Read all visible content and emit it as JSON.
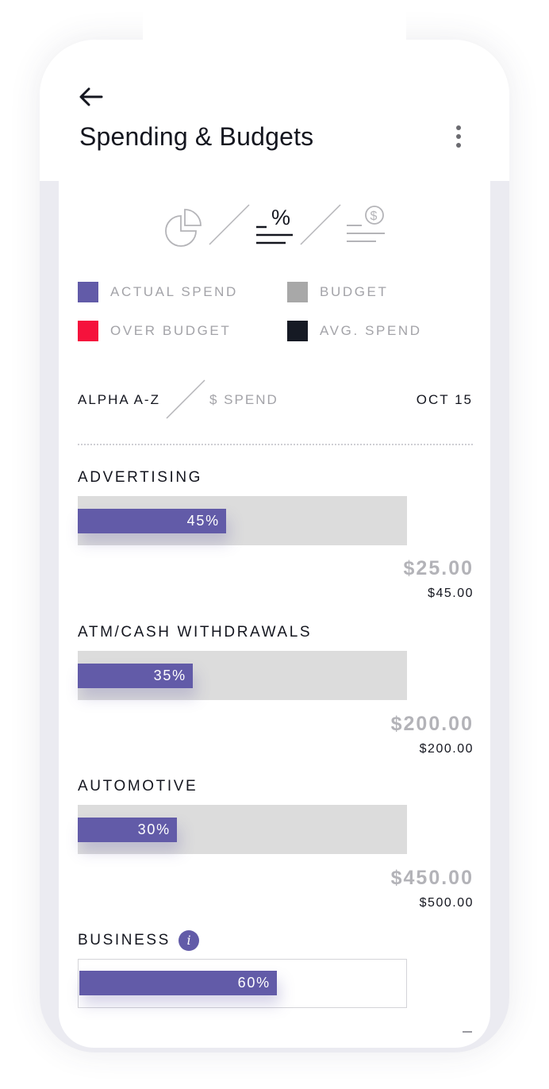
{
  "header": {
    "title": "Spending & Budgets",
    "back_icon": "arrow-left-icon",
    "menu_icon": "more-vertical-icon"
  },
  "view_switcher": {
    "options": [
      {
        "name": "pie-chart",
        "icon": "pie-chart-icon",
        "active": false
      },
      {
        "name": "percent",
        "icon": "percent-list-icon",
        "active": true
      },
      {
        "name": "dollar",
        "icon": "dollar-list-icon",
        "active": false
      }
    ]
  },
  "legend": {
    "items": [
      {
        "label": "ACTUAL SPEND",
        "color": "#625ba8"
      },
      {
        "label": "BUDGET",
        "color": "#a8a8a8"
      },
      {
        "label": "OVER BUDGET",
        "color": "#f5123c"
      },
      {
        "label": "AVG. SPEND",
        "color": "#161a24"
      }
    ]
  },
  "sort": {
    "alpha_label": "ALPHA A-Z",
    "spend_label": "$ SPEND",
    "active": "alpha",
    "date_label": "OCT 15"
  },
  "colors": {
    "accent": "#625ba8",
    "track": "#dcdcdc",
    "text_dark": "#14161f",
    "text_muted": "#a3a3a8"
  },
  "categories": [
    {
      "name": "ADVERTISING",
      "percent_label": "45%",
      "progress": 0.45,
      "actual": "$25.00",
      "budget": "$45.00",
      "info": false
    },
    {
      "name": "ATM/CASH WITHDRAWALS",
      "percent_label": "35%",
      "progress": 0.35,
      "actual": "$200.00",
      "budget": "$200.00",
      "info": false
    },
    {
      "name": "AUTOMOTIVE",
      "percent_label": "30%",
      "progress": 0.3,
      "actual": "$450.00",
      "budget": "$500.00",
      "info": false
    },
    {
      "name": "BUSINESS",
      "percent_label": "60%",
      "progress": 0.6,
      "actual": "",
      "budget": "",
      "info": true
    }
  ]
}
